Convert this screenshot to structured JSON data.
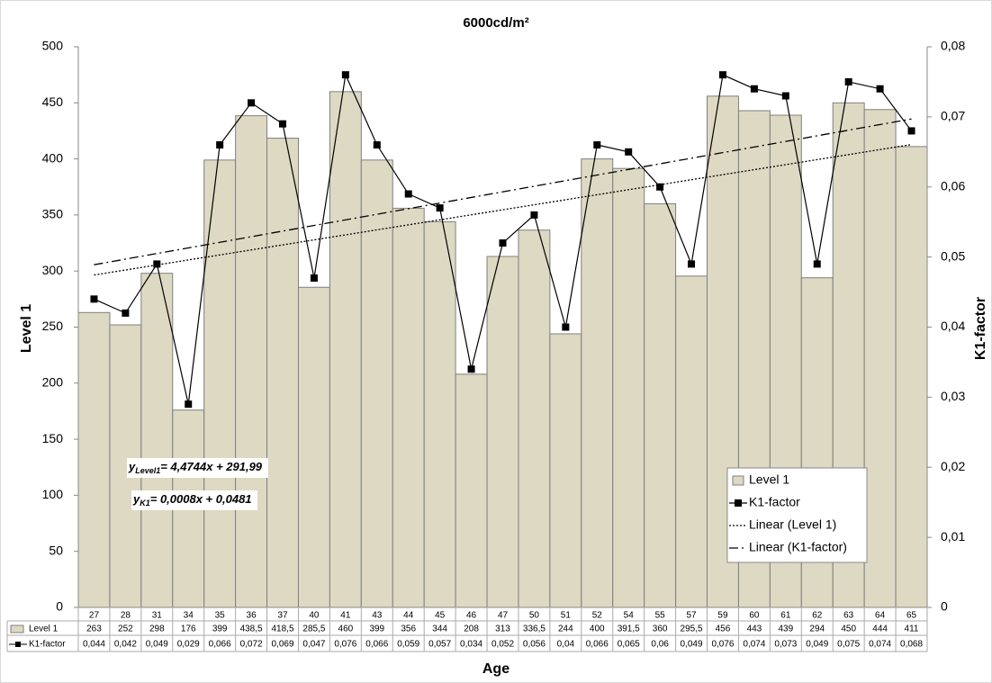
{
  "chart_data": {
    "type": "bar_line_table",
    "title": "6000cd/m²",
    "x_label": "Age",
    "y_label": "Level 1",
    "y2_label": "K1-factor",
    "categories": [
      "27",
      "28",
      "31",
      "34",
      "35",
      "36",
      "37",
      "40",
      "41",
      "43",
      "44",
      "45",
      "46",
      "47",
      "50",
      "51",
      "52",
      "54",
      "55",
      "57",
      "59",
      "60",
      "61",
      "62",
      "63",
      "64",
      "65"
    ],
    "series": [
      {
        "name": "Level 1",
        "type": "bar",
        "color": "#ddd9c3",
        "values": [
          263,
          252,
          298,
          176,
          399,
          438.5,
          418.5,
          285.5,
          460,
          399,
          356,
          344,
          208,
          313,
          336.5,
          244,
          400,
          391.5,
          360,
          295.5,
          456,
          443,
          439,
          294,
          450,
          444,
          411
        ],
        "value_labels": [
          "263",
          "252",
          "298",
          "176",
          "399",
          "438,5",
          "418,5",
          "285,5",
          "460",
          "399",
          "356",
          "344",
          "208",
          "313",
          "336,5",
          "244",
          "400",
          "391,5",
          "360",
          "295,5",
          "456",
          "443",
          "439",
          "294",
          "450",
          "444",
          "411"
        ]
      },
      {
        "name": "K1-factor",
        "type": "line",
        "axis": "y2",
        "color": "#000000",
        "values": [
          0.044,
          0.042,
          0.049,
          0.029,
          0.066,
          0.072,
          0.069,
          0.047,
          0.076,
          0.066,
          0.059,
          0.057,
          0.034,
          0.052,
          0.056,
          0.04,
          0.066,
          0.065,
          0.06,
          0.049,
          0.076,
          0.074,
          0.073,
          0.049,
          0.075,
          0.074,
          0.068
        ],
        "value_labels": [
          "0,044",
          "0,042",
          "0,049",
          "0,029",
          "0,066",
          "0,072",
          "0,069",
          "0,047",
          "0,076",
          "0,066",
          "0,059",
          "0,057",
          "0,034",
          "0,052",
          "0,056",
          "0,04",
          "0,066",
          "0,065",
          "0,06",
          "0,049",
          "0,076",
          "0,074",
          "0,073",
          "0,049",
          "0,075",
          "0,074",
          "0,068"
        ]
      }
    ],
    "trendlines": [
      {
        "name": "Linear (Level 1)",
        "series": 0,
        "dash": "2,2",
        "slope": 4.4744,
        "intercept": 291.99,
        "equation_prefix": "y",
        "equation_subscript": "Level1",
        "equation_body": "= 4,4744x + 291,99"
      },
      {
        "name": "Linear (K1-factor)",
        "series": 1,
        "dash": "10,4,2,4",
        "slope": 0.0008,
        "intercept": 0.0481,
        "equation_prefix": "y",
        "equation_subscript": "K1",
        "equation_body": "= 0,0008x + 0,0481"
      }
    ],
    "ylim": [
      0,
      500
    ],
    "yticks": [
      0,
      50,
      100,
      150,
      200,
      250,
      300,
      350,
      400,
      450,
      500
    ],
    "y2lim": [
      0,
      0.08
    ],
    "y2ticks": [
      0,
      {
        "value": 0.01,
        "label": "0,01"
      },
      {
        "value": 0.02,
        "label": "0,02"
      },
      {
        "value": 0.03,
        "label": "0,03"
      },
      {
        "value": 0.04,
        "label": "0,04"
      },
      {
        "value": 0.05,
        "label": "0,05"
      },
      {
        "value": 0.06,
        "label": "0,06"
      },
      {
        "value": 0.07,
        "label": "0,07"
      },
      {
        "value": 0.08,
        "label": "0,08"
      }
    ],
    "legend": "lower right",
    "grid": false
  }
}
